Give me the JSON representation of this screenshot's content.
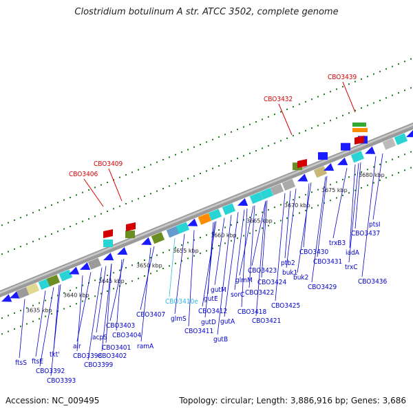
{
  "title": "Clostridium botulinum A str. ATCC 3502, complete genome",
  "footer": {
    "accession": "Accession: NC_009495",
    "summary": "Topology: circular; Length: 3,886,916 bp; Genes: 3,686"
  },
  "colors": {
    "highlight": "#d40000",
    "gene_label": "#0000cc",
    "selected_label": "#33b5e5",
    "backbone": "#909090",
    "tick": "#1a7a1a"
  },
  "ticks": [
    "3635 kbp",
    "3640 kbp",
    "3645 kbp",
    "3650 kbp",
    "3655 kbp",
    "3660 kbp",
    "3665 kbp",
    "3670 kbp",
    "3675 kbp",
    "3680 kbp"
  ],
  "highlight_labels": [
    "CBO3406",
    "CBO3409",
    "CBO3432",
    "CBO3439"
  ],
  "gene_labels": [
    "ftsS",
    "ftsE",
    "CBO3392",
    "tkt'",
    "CBO3393",
    "alr",
    "CBO3398",
    "acpS",
    "CBO3399",
    "CBO3401",
    "CBO3402",
    "CBO3403",
    "CBO3404",
    "ramA",
    "CBO3407",
    "CBO3410e",
    "glmS",
    "CBO3412",
    "CBO3411",
    "gutD",
    "gutB",
    "gutE",
    "gutM",
    "gutA",
    "CBO3418",
    "sorC",
    "glmM",
    "CBO3422",
    "CBO3421",
    "CBO3423",
    "CBO3424",
    "CBO3425",
    "buk2",
    "ptb2",
    "buk1",
    "CBO3429",
    "CBO3430",
    "CBO3431",
    "trxB3",
    "iadA",
    "trxC",
    "CBO3436",
    "CBO3437",
    "ptsI"
  ]
}
